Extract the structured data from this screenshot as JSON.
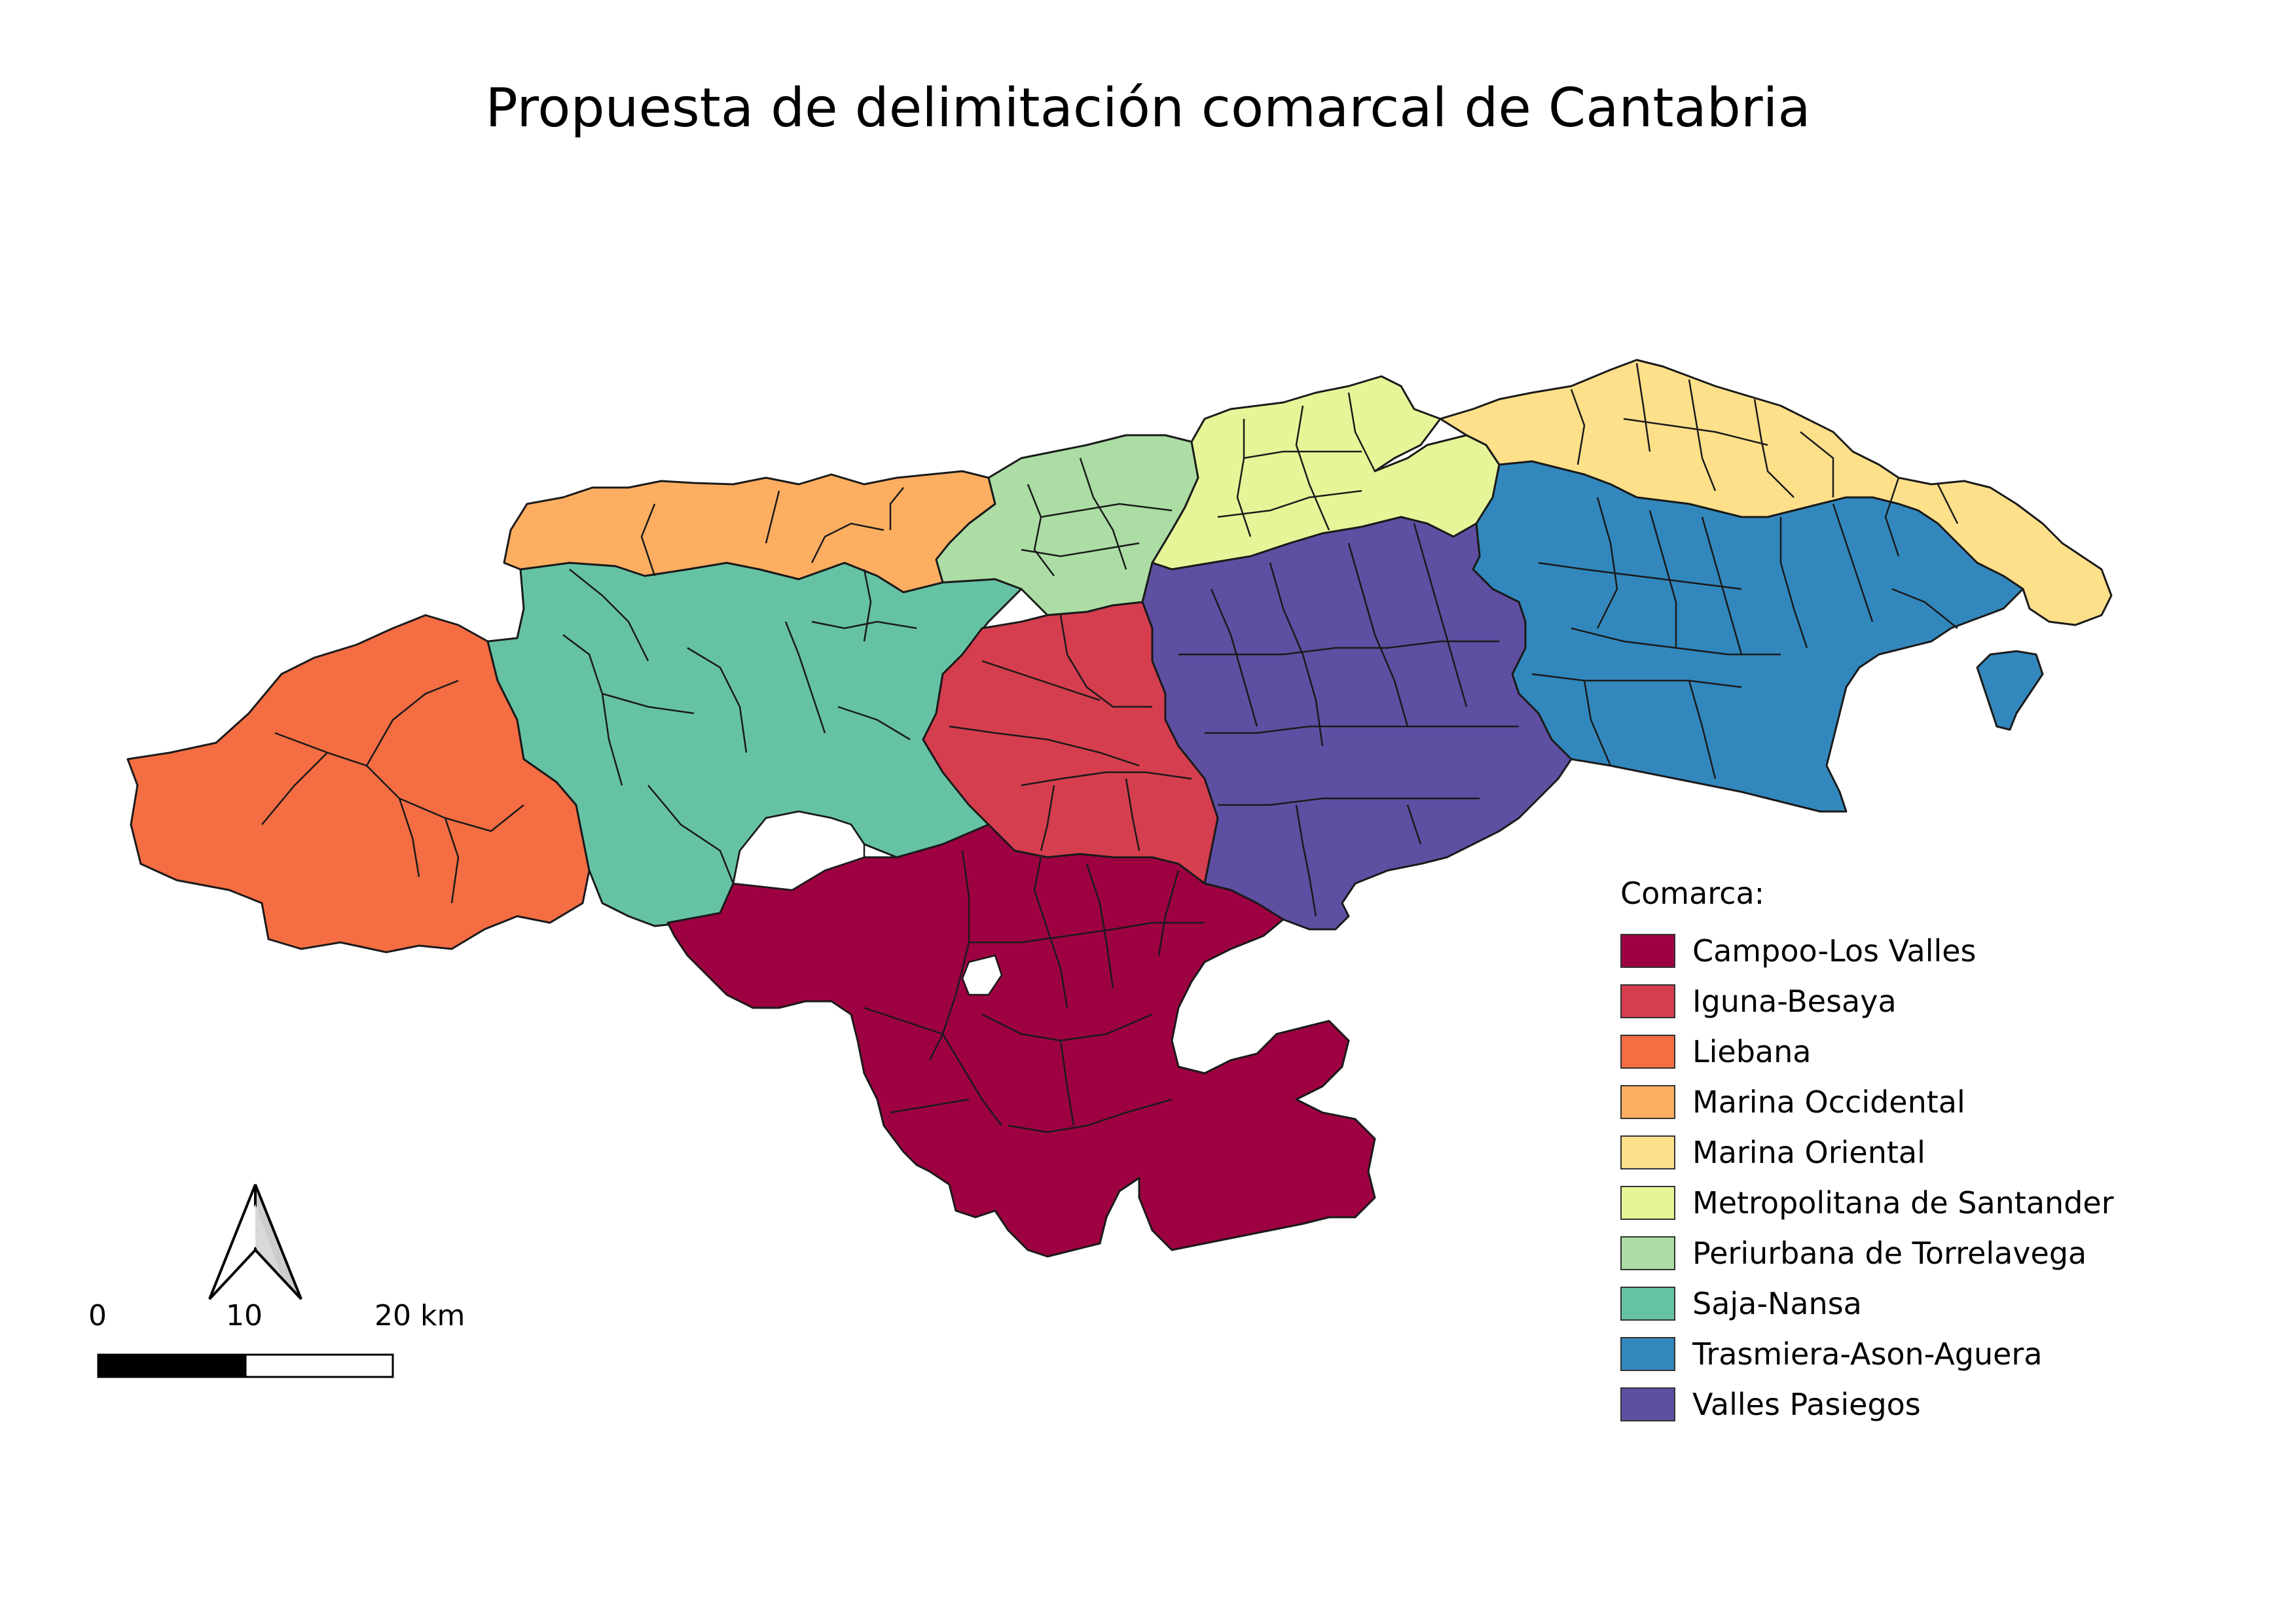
{
  "title": "Propuesta de delimitación comarcal de Cantabria",
  "legend": {
    "title": "Comarca:",
    "items": [
      {
        "label": "Campoo-Los Valles",
        "color": "#9e0142"
      },
      {
        "label": "Iguna-Besaya",
        "color": "#d53e4f"
      },
      {
        "label": "Liebana",
        "color": "#f46d43"
      },
      {
        "label": "Marina Occidental",
        "color": "#fdae61"
      },
      {
        "label": "Marina Oriental",
        "color": "#fee08b"
      },
      {
        "label": "Metropolitana de Santander",
        "color": "#e6f598"
      },
      {
        "label": "Periurbana de Torrelavega",
        "color": "#abdda4"
      },
      {
        "label": "Saja-Nansa",
        "color": "#66c2a5"
      },
      {
        "label": "Trasmiera-Ason-Aguera",
        "color": "#3288bd"
      },
      {
        "label": "Valles Pasiegos",
        "color": "#5e4fa2"
      }
    ]
  },
  "scale_bar": {
    "labels": [
      "0",
      "10",
      "20 km"
    ]
  },
  "north_arrow": {
    "icon": "north-arrow-icon"
  },
  "border_color": "#1a1a1a"
}
